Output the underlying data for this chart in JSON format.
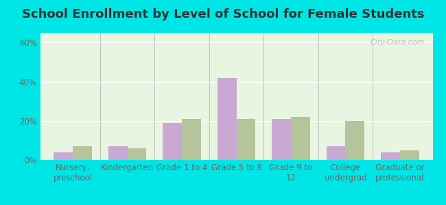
{
  "title": "School Enrollment by Level of School for Female Students",
  "categories": [
    "Nursery,\npreschool",
    "Kindergarten",
    "Grade 1 to 4",
    "Grade 5 to 8",
    "Grade 9 to\n12",
    "College\nundergrad",
    "Graduate or\nprofessional"
  ],
  "gingles": [
    4,
    7,
    19,
    42,
    21,
    7,
    4
  ],
  "wisconsin": [
    7,
    6,
    21,
    21,
    22,
    20,
    5
  ],
  "gingles_color": "#c9a8d4",
  "wisconsin_color": "#b5c49a",
  "background_color": "#00e5e5",
  "plot_bg_top": "#e8f5e0",
  "plot_bg_bottom": "#f0faf0",
  "title_color": "#333333",
  "axis_label_color": "#666666",
  "tick_color": "#666666",
  "yticks": [
    0,
    20,
    40,
    60
  ],
  "ylim": [
    0,
    65
  ],
  "bar_width": 0.35,
  "title_fontsize": 13,
  "legend_fontsize": 10,
  "tick_fontsize": 8.5,
  "watermark": "City-Data.com"
}
